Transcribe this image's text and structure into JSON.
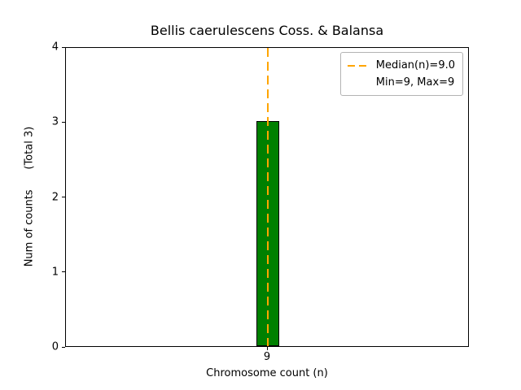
{
  "chart_data": {
    "type": "bar",
    "title": "Bellis caerulescens Coss. & Balansa",
    "xlabel": "Chromosome count (n)",
    "ylabel": "Num of counts      (Total 3)",
    "categories": [
      "9"
    ],
    "values": [
      3
    ],
    "total_counts": 3,
    "ylim": [
      0,
      4
    ],
    "yticks": [
      0,
      1,
      2,
      3,
      4
    ],
    "grid": false,
    "bar_color": "#008000",
    "bar_edge_color": "#000000",
    "median_line": {
      "at_category": "9",
      "value": 9.0,
      "color": "#ffa500",
      "style": "dashed"
    },
    "legend": {
      "position": "upper right",
      "entries": [
        {
          "label": "Median(n)=9.0",
          "handle": "dashed-line",
          "color": "#ffa500"
        },
        {
          "label": "Min=9, Max=9",
          "handle": "none"
        }
      ]
    }
  }
}
